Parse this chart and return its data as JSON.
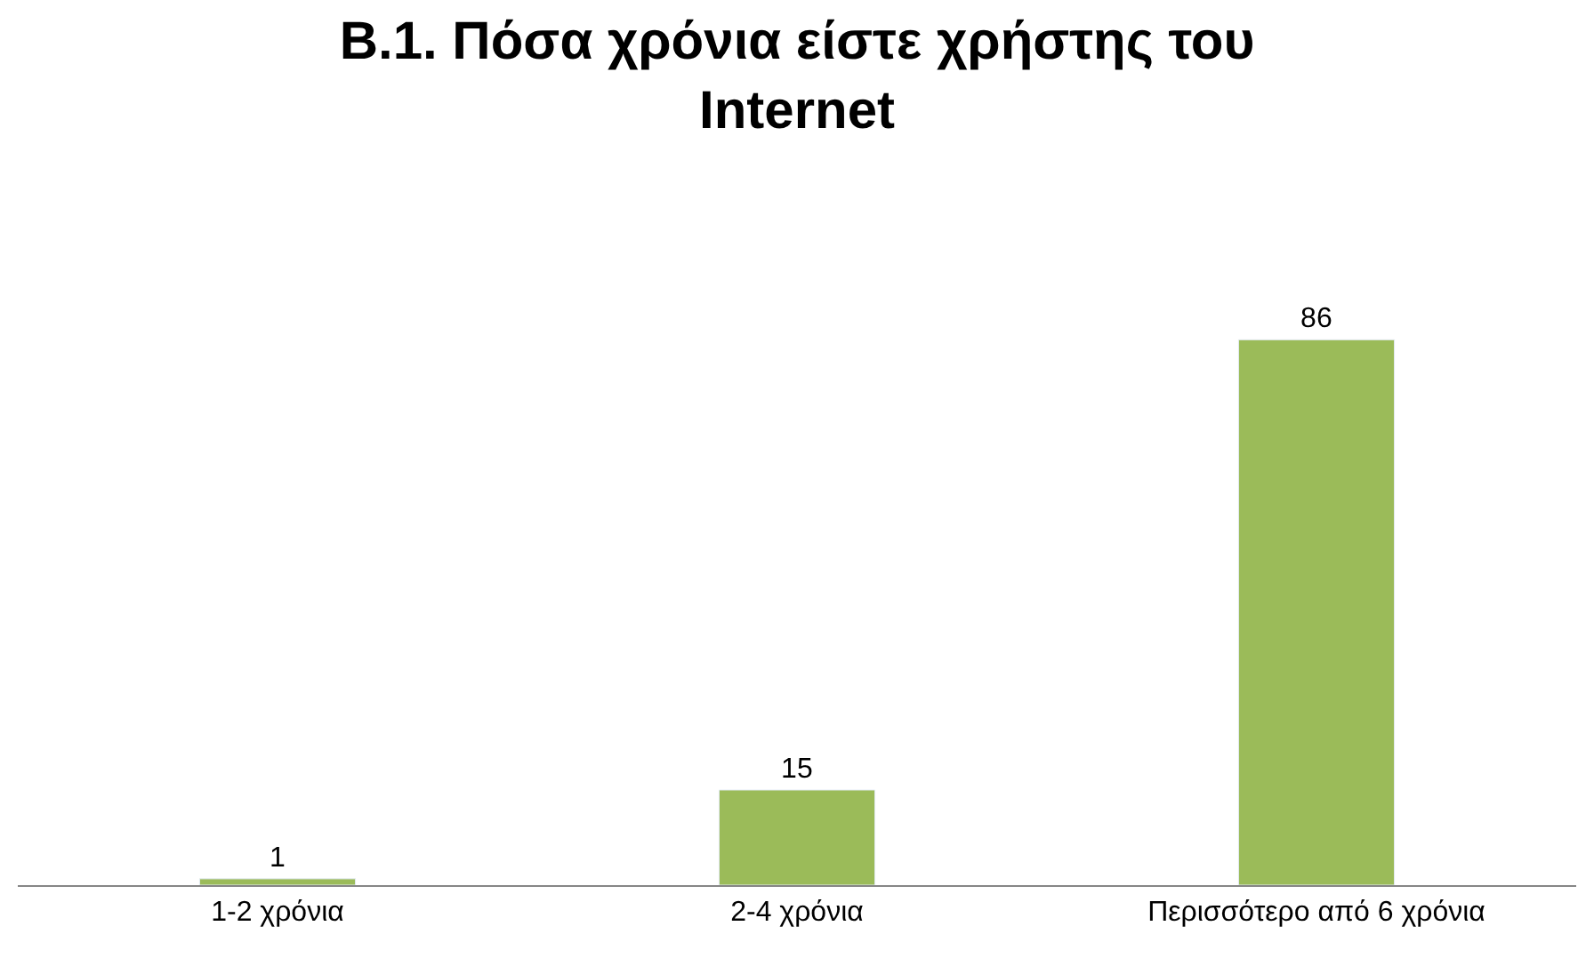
{
  "chart_data": {
    "type": "bar",
    "title": "Β.1. Πόσα χρόνια είστε χρήστης του Internet",
    "categories": [
      "1-2 χρόνια",
      "2-4 χρόνια",
      "Περισσότερο από 6 χρόνια"
    ],
    "values": [
      1,
      15,
      86
    ],
    "color": "#9bbb59",
    "data_labels": true
  }
}
